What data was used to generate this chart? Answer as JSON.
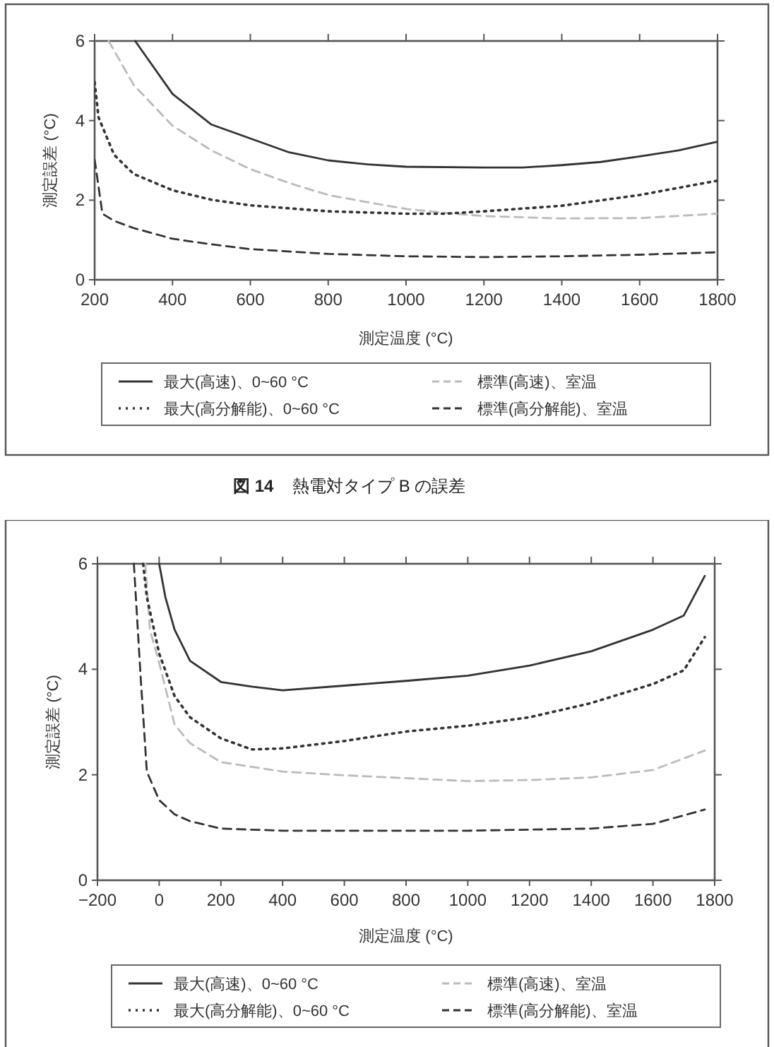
{
  "chart_data": [
    {
      "type": "line",
      "xlabel": "測定温度 (°C)",
      "ylabel": "測定誤差 (°C)",
      "xlim": [
        200,
        1800
      ],
      "xticks": [
        200,
        400,
        600,
        800,
        1000,
        1200,
        1400,
        1600,
        1800
      ],
      "ylim": [
        0,
        6
      ],
      "yticks": [
        0,
        2,
        4,
        6
      ],
      "legend": "bottom",
      "annotations": [
        "図 14",
        "熱電対タイプ B の誤差"
      ],
      "series": [
        {
          "name": "最大(高速)、0~60 °C",
          "color": "#333333",
          "line_style": "solid",
          "x": [
            304,
            400,
            500,
            600,
            700,
            800,
            900,
            1000,
            1200,
            1300,
            1400,
            1500,
            1600,
            1700,
            1800
          ],
          "values": [
            6,
            4.67,
            3.9,
            3.55,
            3.2,
            3.0,
            2.9,
            2.84,
            2.82,
            2.82,
            2.88,
            2.96,
            3.1,
            3.25,
            3.47
          ]
        },
        {
          "name": "標準(高速)、室温",
          "color": "#bbbbbb",
          "line_style": "dashed",
          "x": [
            236,
            300,
            400,
            500,
            600,
            700,
            800,
            900,
            1000,
            1100,
            1200,
            1400,
            1600,
            1800
          ],
          "values": [
            6,
            4.9,
            3.87,
            3.25,
            2.78,
            2.43,
            2.13,
            1.95,
            1.78,
            1.68,
            1.6,
            1.54,
            1.55,
            1.66
          ]
        },
        {
          "name": "最大(高分解能)、0~60 °C",
          "color": "#333333",
          "line_style": "dotted",
          "x": [
            200,
            210,
            250,
            300,
            400,
            500,
            600,
            800,
            1000,
            1100,
            1200,
            1400,
            1600,
            1800
          ],
          "values": [
            4.97,
            4.08,
            3.14,
            2.66,
            2.25,
            2.01,
            1.87,
            1.72,
            1.66,
            1.66,
            1.72,
            1.86,
            2.13,
            2.49
          ]
        },
        {
          "name": "標準(高分解能)、室温",
          "color": "#333333",
          "line_style": "dashed",
          "x": [
            200,
            220,
            250,
            300,
            400,
            500,
            600,
            800,
            1000,
            1200,
            1400,
            1600,
            1800
          ],
          "values": [
            3.02,
            1.66,
            1.48,
            1.3,
            1.03,
            0.89,
            0.77,
            0.65,
            0.59,
            0.57,
            0.59,
            0.63,
            0.69
          ]
        }
      ]
    },
    {
      "type": "line",
      "xlabel": "測定温度 (°C)",
      "ylabel": "測定誤差 (°C)",
      "xlim": [
        -200,
        1800
      ],
      "xticks": [
        {
          "value": -200,
          "label": "−200"
        },
        0,
        200,
        400,
        600,
        800,
        1000,
        1200,
        1400,
        1600,
        1800
      ],
      "ylim": [
        0,
        6
      ],
      "yticks": [
        0,
        2,
        4,
        6
      ],
      "legend": "bottom",
      "series": [
        {
          "name": "最大(高速)、0~60 °C",
          "color": "#333333",
          "line_style": "solid",
          "x": [
            0,
            20,
            50,
            100,
            200,
            300,
            400,
            600,
            800,
            1000,
            1200,
            1400,
            1600,
            1700,
            1768
          ],
          "values": [
            6,
            5.37,
            4.75,
            4.16,
            3.76,
            3.67,
            3.6,
            3.69,
            3.78,
            3.88,
            4.07,
            4.34,
            4.75,
            5.02,
            5.77
          ]
        },
        {
          "name": "標準(高速)、室温",
          "color": "#bbbbbb",
          "line_style": "dashed",
          "x": [
            -45,
            -30,
            0,
            50,
            100,
            200,
            400,
            600,
            1000,
            1200,
            1400,
            1600,
            1768
          ],
          "values": [
            6,
            4.75,
            4.12,
            2.95,
            2.6,
            2.24,
            2.06,
            1.99,
            1.88,
            1.9,
            1.95,
            2.09,
            2.46
          ]
        },
        {
          "name": "最大(高分解能)、0~60 °C",
          "color": "#333333",
          "line_style": "dotted",
          "x": [
            -52,
            -40,
            0,
            50,
            100,
            200,
            300,
            400,
            600,
            800,
            1000,
            1200,
            1400,
            1600,
            1700,
            1768
          ],
          "values": [
            6,
            5.37,
            4.3,
            3.49,
            3.09,
            2.69,
            2.48,
            2.5,
            2.64,
            2.82,
            2.93,
            3.09,
            3.36,
            3.72,
            3.98,
            4.61
          ]
        },
        {
          "name": "標準(高分解能)、室温",
          "color": "#333333",
          "line_style": "dashed",
          "x": [
            -82,
            -60,
            -40,
            0,
            50,
            100,
            200,
            400,
            1000,
            1400,
            1600,
            1768
          ],
          "values": [
            6,
            3.85,
            2.06,
            1.52,
            1.25,
            1.12,
            0.98,
            0.94,
            0.94,
            0.98,
            1.07,
            1.34
          ]
        }
      ]
    }
  ]
}
